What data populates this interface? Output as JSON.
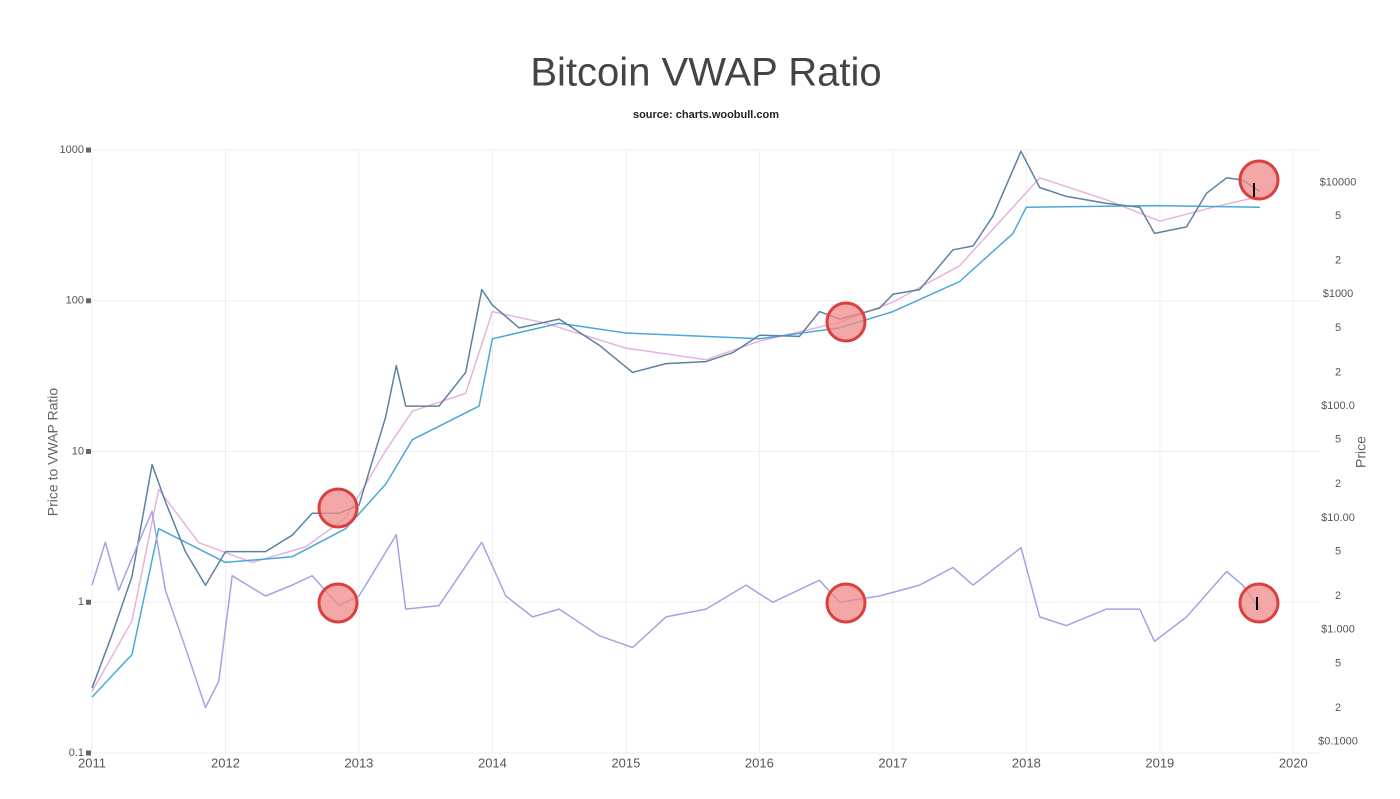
{
  "chart_data": {
    "type": "line",
    "title": "Bitcoin VWAP Ratio",
    "subtitle": "source: charts.woobull.com",
    "ylabel": "Price to VWAP Ratio",
    "y2label": "Price",
    "xlim": [
      2011,
      2020.2
    ],
    "xticks": [
      2011,
      2012,
      2013,
      2014,
      2015,
      2016,
      2017,
      2018,
      2019,
      2020
    ],
    "ylim": [
      0.1,
      1000
    ],
    "yticks": [
      0.1,
      1,
      10,
      100,
      1000
    ],
    "yscale": "log",
    "y2lim": [
      0.079,
      19500
    ],
    "y2scale": "log",
    "y2ticks": [
      {
        "value": 0.1,
        "label": "$0.1000"
      },
      {
        "value": 0.2,
        "label": "2"
      },
      {
        "value": 0.5,
        "label": "5"
      },
      {
        "value": 1,
        "label": "$1.000"
      },
      2,
      5,
      {
        "value": 10,
        "label": "$10.00"
      },
      {
        "value": 20,
        "label": "2"
      },
      {
        "value": 50,
        "label": "5"
      },
      {
        "value": 100,
        "label": "$100.0"
      },
      {
        "value": 200,
        "label": "2"
      },
      {
        "value": 500,
        "label": "5"
      },
      {
        "value": 1000,
        "label": "$1000"
      },
      {
        "value": 2000,
        "label": "2"
      },
      {
        "value": 5000,
        "label": "5"
      },
      {
        "value": 10000,
        "label": "$10000"
      }
    ],
    "grid": true,
    "series": [
      {
        "color": "#e7b3dc",
        "axis": "y2",
        "x": [
          2011.0,
          2011.3,
          2011.5,
          2011.8,
          2012.2,
          2012.6,
          2012.9,
          2013.2,
          2013.4,
          2013.8,
          2014.0,
          2014.4,
          2015.0,
          2015.6,
          2016.0,
          2016.6,
          2017.0,
          2017.5,
          2017.9,
          2018.1,
          2018.6,
          2019.0,
          2019.4,
          2019.75
        ],
        "values": [
          0.28,
          1.2,
          18,
          6,
          4,
          5.5,
          10,
          40,
          90,
          130,
          700,
          550,
          330,
          260,
          380,
          560,
          850,
          1800,
          6000,
          11000,
          7000,
          4500,
          6000,
          7500
        ]
      },
      {
        "color": "#4aa8d8",
        "axis": "y2",
        "x": [
          2011.0,
          2011.3,
          2011.5,
          2012.0,
          2012.5,
          2012.9,
          2013.2,
          2013.4,
          2013.9,
          2014.0,
          2014.5,
          2015.0,
          2016.0,
          2016.6,
          2017.0,
          2017.5,
          2017.9,
          2018.0,
          2019.0,
          2019.75
        ],
        "values": [
          0.25,
          0.6,
          8,
          4,
          4.5,
          8,
          20,
          50,
          100,
          400,
          550,
          450,
          400,
          500,
          700,
          1300,
          3500,
          6000,
          6200,
          6000
        ]
      },
      {
        "color": "#5b82a3",
        "axis": "y2",
        "x": [
          2011.0,
          2011.15,
          2011.3,
          2011.45,
          2011.55,
          2011.7,
          2011.85,
          2012.0,
          2012.3,
          2012.5,
          2012.65,
          2012.85,
          2013.0,
          2013.2,
          2013.28,
          2013.35,
          2013.6,
          2013.8,
          2013.92,
          2014.0,
          2014.2,
          2014.5,
          2014.8,
          2015.05,
          2015.3,
          2015.6,
          2015.8,
          2016.0,
          2016.3,
          2016.45,
          2016.6,
          2016.9,
          2017.0,
          2017.2,
          2017.45,
          2017.6,
          2017.75,
          2017.96,
          2018.1,
          2018.3,
          2018.6,
          2018.85,
          2018.96,
          2019.2,
          2019.35,
          2019.5,
          2019.62,
          2019.75
        ],
        "values": [
          0.3,
          0.9,
          3,
          30,
          14,
          5,
          2.5,
          5,
          5,
          7,
          11,
          11,
          13,
          80,
          230,
          100,
          100,
          200,
          1100,
          800,
          500,
          600,
          350,
          200,
          240,
          250,
          300,
          430,
          420,
          700,
          600,
          750,
          1000,
          1100,
          2500,
          2700,
          5000,
          19000,
          9000,
          7500,
          6500,
          6000,
          3500,
          4000,
          8000,
          11000,
          10500,
          8300
        ]
      },
      {
        "color": "#a3a3e6",
        "axis": "y",
        "x": [
          2011.0,
          2011.1,
          2011.2,
          2011.35,
          2011.45,
          2011.55,
          2011.7,
          2011.85,
          2011.95,
          2012.05,
          2012.3,
          2012.5,
          2012.65,
          2012.85,
          2013.0,
          2013.28,
          2013.35,
          2013.6,
          2013.92,
          2014.1,
          2014.3,
          2014.5,
          2014.8,
          2015.05,
          2015.3,
          2015.6,
          2015.9,
          2016.1,
          2016.45,
          2016.6,
          2016.9,
          2017.2,
          2017.45,
          2017.6,
          2017.96,
          2018.1,
          2018.3,
          2018.6,
          2018.85,
          2018.96,
          2019.2,
          2019.5,
          2019.62,
          2019.75
        ],
        "values": [
          1.3,
          2.5,
          1.2,
          2.5,
          4,
          1.2,
          0.5,
          0.2,
          0.3,
          1.5,
          1.1,
          1.3,
          1.5,
          0.95,
          1.1,
          2.8,
          0.9,
          0.95,
          2.5,
          1.1,
          0.8,
          0.9,
          0.6,
          0.5,
          0.8,
          0.9,
          1.3,
          1.0,
          1.4,
          1.0,
          1.1,
          1.3,
          1.7,
          1.3,
          2.3,
          0.8,
          0.7,
          0.9,
          0.9,
          0.55,
          0.8,
          1.6,
          1.3,
          0.9
        ]
      }
    ]
  }
}
